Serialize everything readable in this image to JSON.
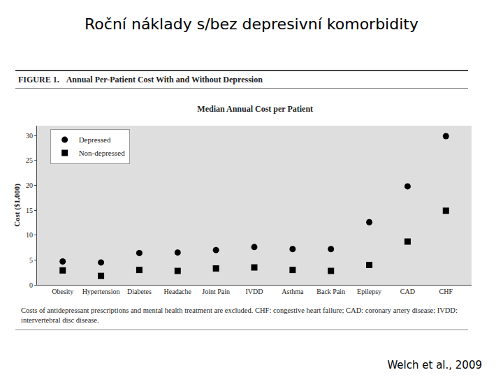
{
  "slide": {
    "title": "Roční náklady s/bez depresivní komorbidity",
    "figure_label": "FIGURE 1.",
    "figure_caption": "Annual Per-Patient Cost With and Without Depression",
    "footnote": "Costs of antidepressant prescriptions and mental health treatment are excluded. CHF: congestive heart failure; CAD: coronary artery disease; IVDD: intervertebral disc disease.",
    "source": "Welch et al., 2009"
  },
  "chart_data": {
    "type": "scatter",
    "title": "Median Annual Cost per Patient",
    "y_label": "Cost ($1,000)",
    "categories": [
      "Obesity",
      "Hypertension",
      "Diabetes",
      "Headache",
      "Joint Pain",
      "IVDD",
      "Asthma",
      "Back Pain",
      "Epilepsy",
      "CAD",
      "CHF"
    ],
    "series": [
      {
        "name": "Depressed",
        "color": "#000000",
        "marker": "circle",
        "values": [
          4.7,
          4.5,
          6.4,
          6.5,
          7.0,
          7.6,
          7.2,
          7.2,
          12.6,
          19.8,
          29.9
        ]
      },
      {
        "name": "Non-depressed",
        "color": "#000000",
        "marker": "square",
        "values": [
          2.9,
          1.8,
          3.0,
          2.8,
          3.3,
          3.5,
          3.0,
          2.8,
          4.0,
          8.7,
          14.9
        ]
      }
    ],
    "ylim": [
      0,
      32
    ],
    "yticks": [
      0,
      5,
      10,
      15,
      20,
      25,
      30
    ],
    "grid": false,
    "legend": "top left"
  }
}
